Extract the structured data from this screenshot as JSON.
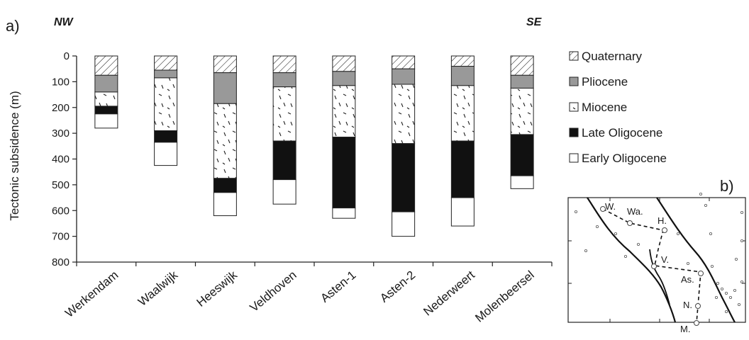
{
  "panel_a_label": "a)",
  "panel_b_label": "b)",
  "nw_label": "NW",
  "se_label": "SE",
  "colors": {
    "Quaternary": "#ffffff",
    "Pliocene": "#999999",
    "Miocene": "#ffffff",
    "Late Oligocene": "#111111",
    "Early Oligocene": "#ffffff"
  },
  "chart_data": {
    "type": "bar",
    "stacked": true,
    "inverted_y": true,
    "ylabel": "Tectonic subsidence (m)",
    "xlabel": "",
    "ylim": [
      0,
      800
    ],
    "yticks": [
      0,
      100,
      200,
      300,
      400,
      500,
      600,
      700,
      800
    ],
    "categories": [
      "Werkendam",
      "Waalwijk",
      "Heeswijk",
      "Veldhoven",
      "Asten-1",
      "Asten-2",
      "Nederweert",
      "Molenbeersel"
    ],
    "series": [
      {
        "name": "Quaternary",
        "pattern": "hatched",
        "values": [
          75,
          55,
          65,
          65,
          60,
          50,
          40,
          75
        ]
      },
      {
        "name": "Pliocene",
        "pattern": "grey",
        "values": [
          65,
          30,
          120,
          55,
          55,
          60,
          75,
          50
        ]
      },
      {
        "name": "Miocene",
        "pattern": "dashes",
        "values": [
          55,
          205,
          290,
          210,
          200,
          230,
          215,
          180
        ]
      },
      {
        "name": "Late Oligocene",
        "pattern": "black",
        "values": [
          30,
          45,
          55,
          150,
          275,
          265,
          220,
          160
        ]
      },
      {
        "name": "Early Oligocene",
        "pattern": "white",
        "values": [
          55,
          90,
          90,
          95,
          40,
          95,
          110,
          50
        ]
      }
    ]
  },
  "map": {
    "stations": [
      {
        "label": "W."
      },
      {
        "label": "Wa."
      },
      {
        "label": "H."
      },
      {
        "label": "V."
      },
      {
        "label": "As."
      },
      {
        "label": "N."
      },
      {
        "label": "M."
      }
    ]
  }
}
